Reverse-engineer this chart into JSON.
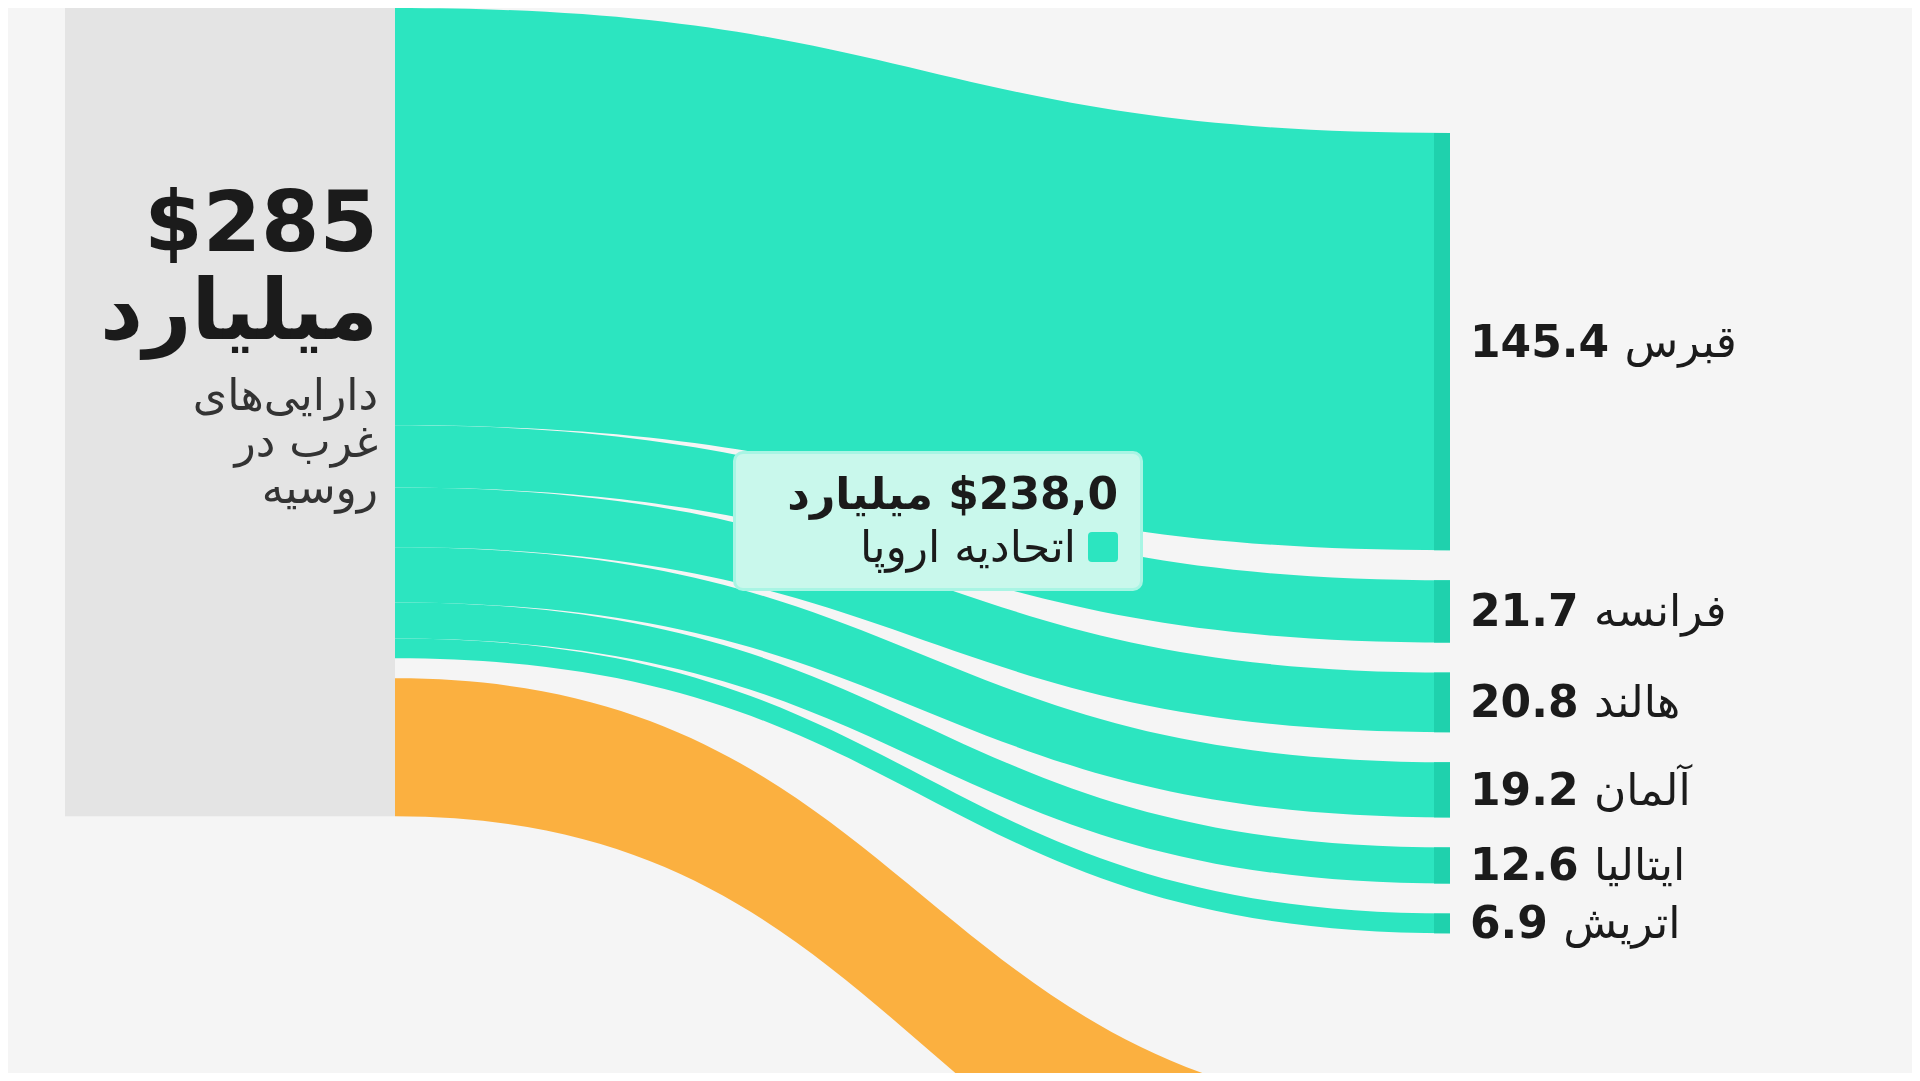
{
  "chart_data": {
    "type": "other",
    "title": "$285 میلیارد",
    "subtitle": "دارایی‌های غرب در روسیه",
    "categories": [
      "قبرس",
      "فرانسه",
      "هالند",
      "آلمان",
      "ایتالیا",
      "اتریش"
    ],
    "series": [
      {
        "name": "اتحادیه اروپا",
        "color": "#2ce5c0",
        "values": [
          145.4,
          21.7,
          20.8,
          19.2,
          12.6,
          6.9
        ]
      },
      {
        "color": "#fbb040",
        "values": [
          null,
          null,
          null,
          null,
          null,
          null
        ]
      }
    ],
    "annotations": [
      "$238,0 میلیارد"
    ],
    "data_labels": true
  }
}
